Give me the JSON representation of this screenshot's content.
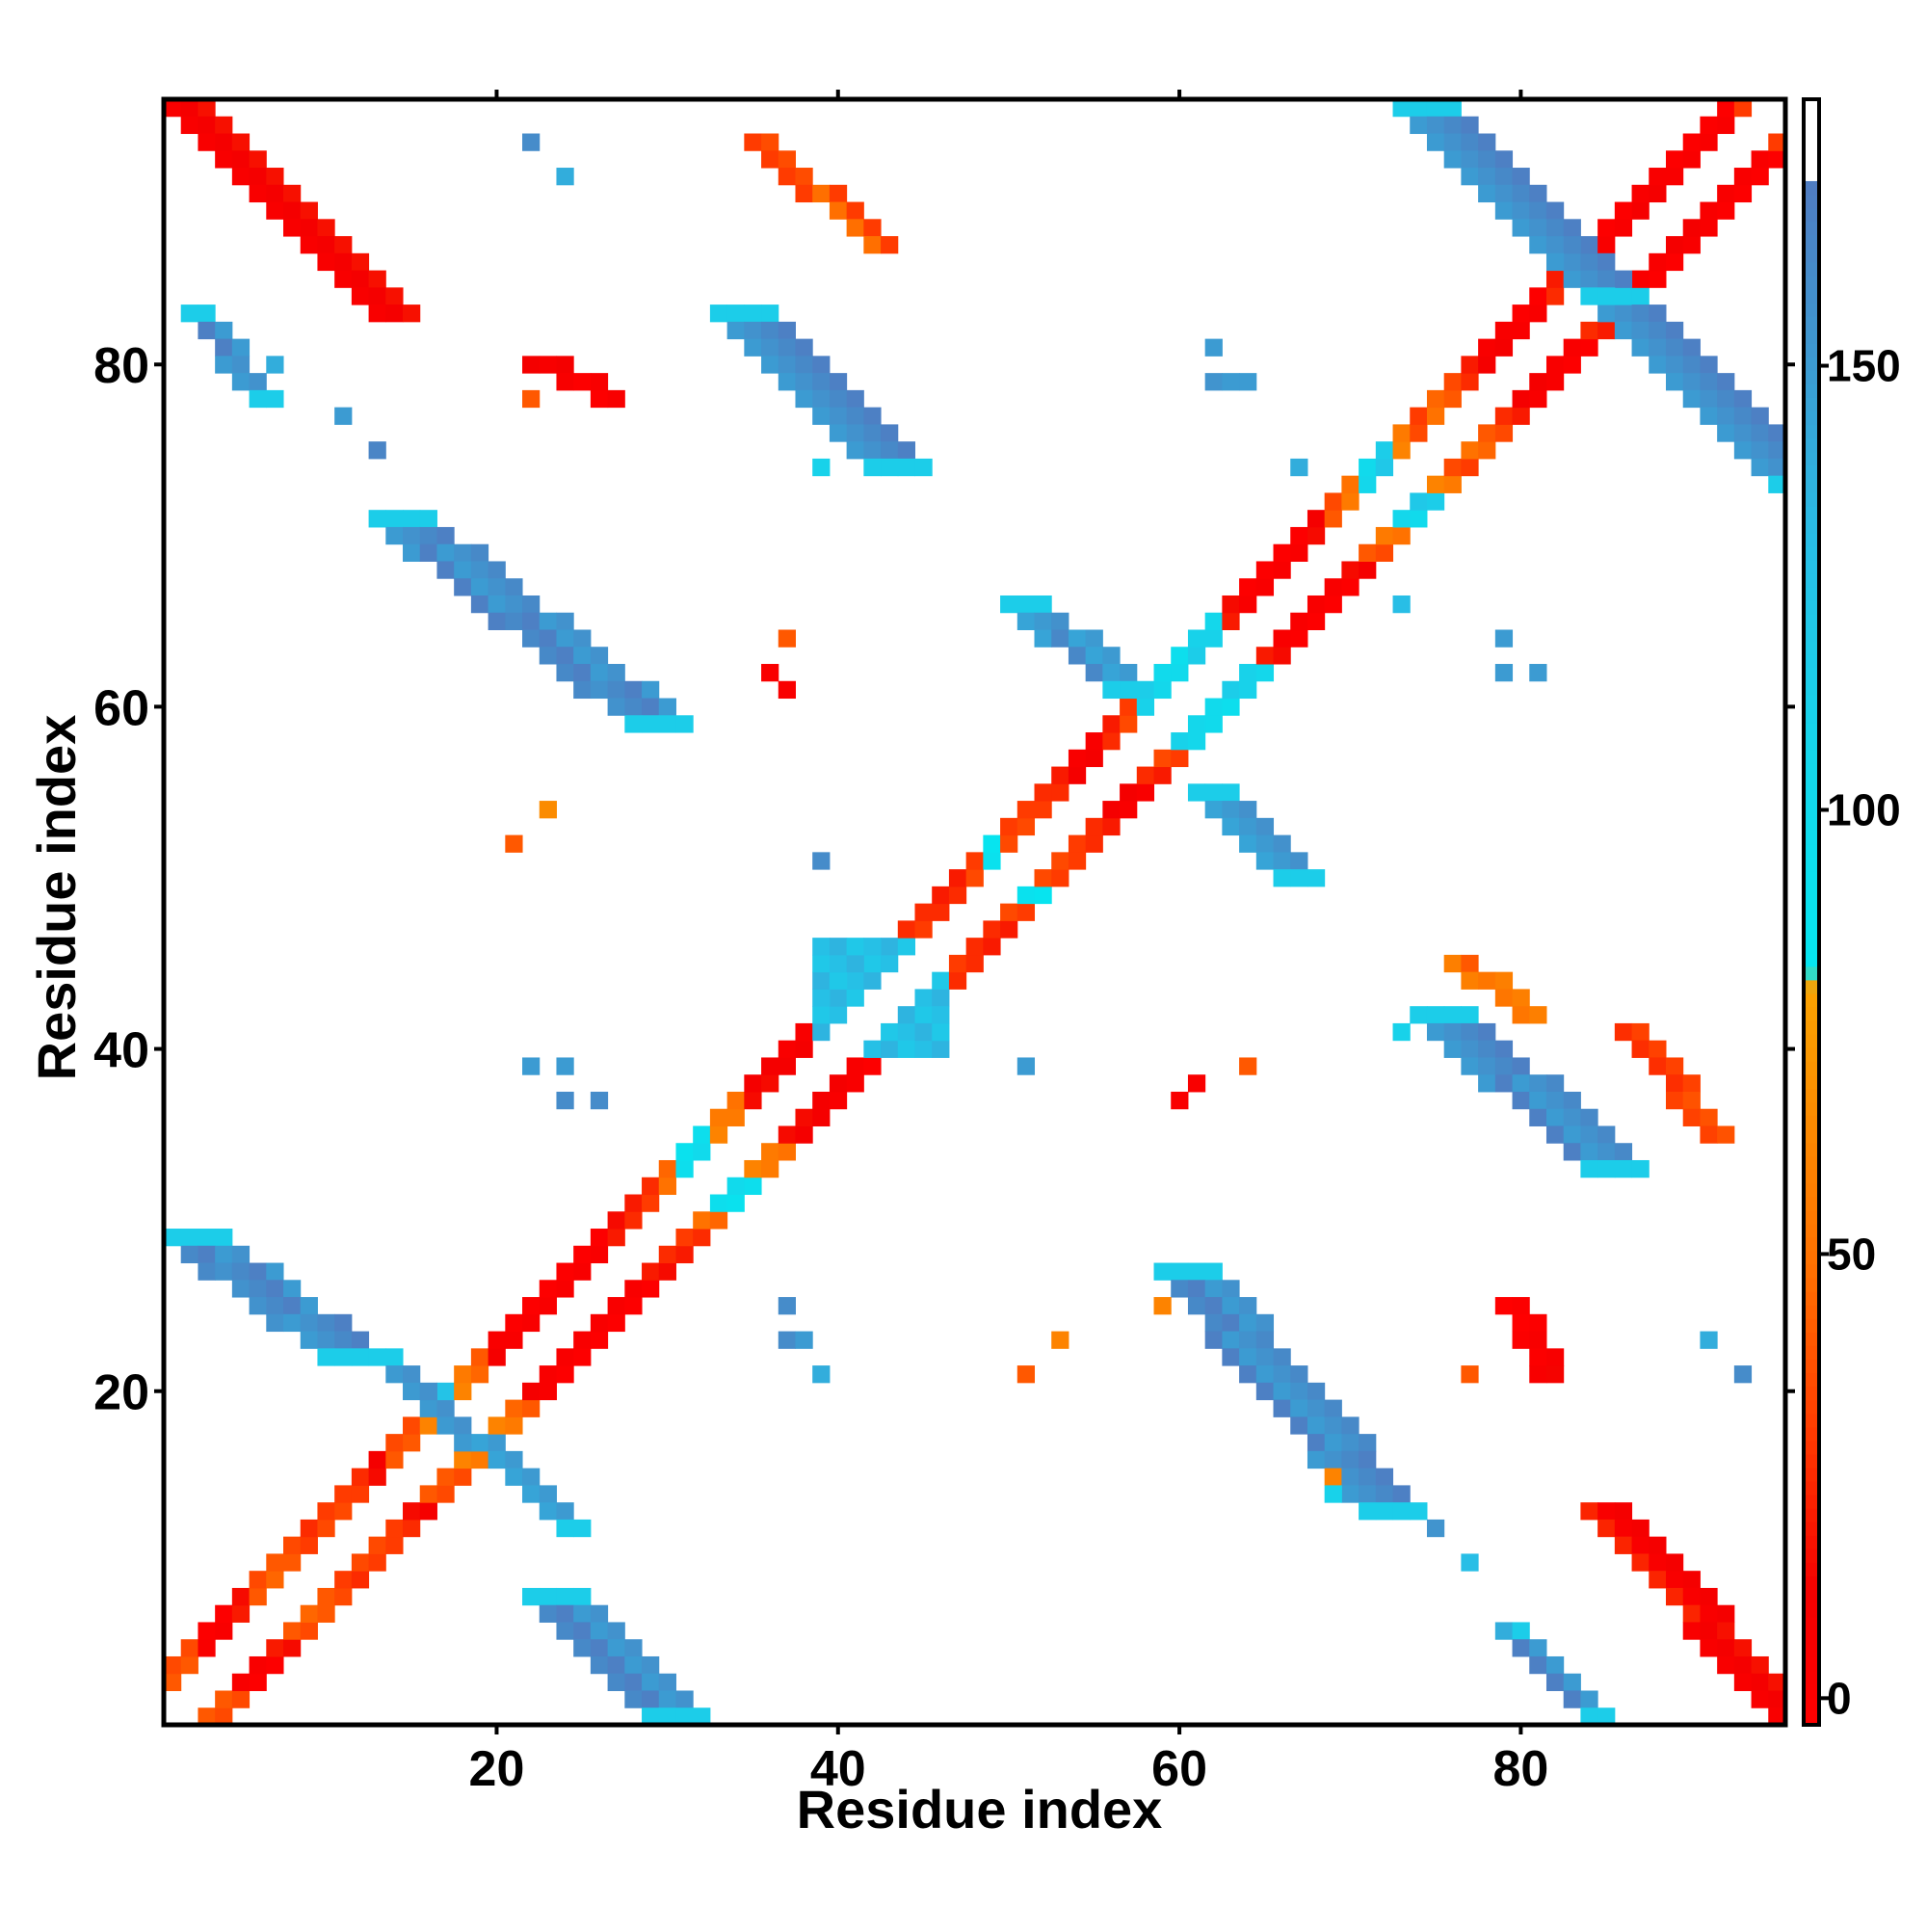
{
  "chart_data": {
    "type": "heatmap",
    "title": "",
    "xlabel": "Residue index",
    "ylabel": "Residue index",
    "xlim": [
      0.5,
      95.5
    ],
    "ylim": [
      0.5,
      95.5
    ],
    "x_ticks": [
      20,
      40,
      60,
      80
    ],
    "y_ticks": [
      20,
      40,
      60,
      80
    ],
    "grid": false,
    "legend": "right",
    "colorbar": {
      "range": [
        -3,
        180
      ],
      "ticks": [
        0,
        50,
        100,
        150
      ],
      "stops": [
        {
          "value": -3,
          "color": "#ff0000"
        },
        {
          "value": 12,
          "color": "#f40000"
        },
        {
          "value": 30,
          "color": "#ff3b00"
        },
        {
          "value": 48,
          "color": "#ff6f00"
        },
        {
          "value": 72,
          "color": "#fa9600"
        },
        {
          "value": 80,
          "color": "#fba200"
        },
        {
          "value": 82,
          "color": "#05e6f0"
        },
        {
          "value": 105,
          "color": "#14d7eb"
        },
        {
          "value": 130,
          "color": "#28bee6"
        },
        {
          "value": 150,
          "color": "#3c9bd2"
        },
        {
          "value": 170,
          "color": "#4f7dc2"
        },
        {
          "value": 180,
          "color": "#ffffff"
        }
      ]
    },
    "diagonal_band": {
      "length": 95,
      "description": "i-i+1, i+2 contacts along diagonal; value per i",
      "values": [
        40,
        40,
        5,
        5,
        20,
        40,
        45,
        40,
        30,
        35,
        35,
        30,
        15,
        40,
        40,
        60,
        130,
        60,
        45,
        10,
        5,
        5,
        5,
        5,
        5,
        5,
        20,
        25,
        30,
        50,
        95,
        100,
        60,
        55,
        15,
        15,
        10,
        10,
        5,
        5,
        35,
        100,
        35,
        30,
        30,
        25,
        25,
        35,
        90,
        35,
        35,
        30,
        25,
        10,
        10,
        25,
        35,
        110,
        105,
        100,
        115,
        110,
        20,
        5,
        5,
        5,
        5,
        15,
        40,
        55,
        105,
        120,
        60,
        35,
        50,
        40,
        25,
        10,
        10,
        5,
        5,
        25,
        35,
        130,
        5,
        5,
        10,
        10,
        5,
        5,
        5,
        5,
        30,
        30,
        30
      ]
    },
    "blocks": [
      {
        "x": [
          1,
          13
        ],
        "y": [
          83,
          95
        ],
        "direction": "anti",
        "value": 15,
        "width": 3
      },
      {
        "x": [
          2,
          6
        ],
        "y": [
          78,
          83
        ],
        "direction": "anti",
        "value": 160,
        "width": 2
      },
      {
        "x": [
          13,
          28
        ],
        "y": [
          59,
          71
        ],
        "direction": "anti",
        "value": 160,
        "width": 4
      },
      {
        "x": [
          33,
          42
        ],
        "y": [
          74,
          83
        ],
        "direction": "anti",
        "value": 160,
        "width": 4
      },
      {
        "x": [
          35,
          42
        ],
        "y": [
          87,
          93
        ],
        "direction": "anti",
        "value": 40,
        "width": 2
      },
      {
        "x": [
          22,
          26
        ],
        "y": [
          78,
          80
        ],
        "direction": "anti",
        "value": 10,
        "width": 2
      },
      {
        "x": [
          73,
          84
        ],
        "y": [
          84,
          95
        ],
        "direction": "anti",
        "value": 160,
        "width": 4
      },
      {
        "x": [
          84,
          95
        ],
        "y": [
          73,
          84
        ],
        "direction": "anti",
        "value": 160,
        "width": 4
      },
      {
        "x": [
          50,
          56
        ],
        "y": [
          61,
          66
        ],
        "direction": "anti",
        "value": 155,
        "width": 3
      },
      {
        "x": [
          61,
          66
        ],
        "y": [
          50,
          55
        ],
        "direction": "anti",
        "value": 155,
        "width": 3
      },
      {
        "x": [
          39,
          46
        ],
        "y": [
          40,
          46
        ],
        "direction": "block",
        "value": 120,
        "width": 2
      },
      {
        "x": [
          1,
          10
        ],
        "y": [
          22,
          29
        ],
        "direction": "anti",
        "value": 160,
        "width": 4
      },
      {
        "x": [
          13,
          24
        ],
        "y": [
          12,
          22
        ],
        "direction": "anti",
        "value": 155,
        "width": 2
      },
      {
        "x": [
          22,
          29
        ],
        "y": [
          1,
          8
        ],
        "direction": "anti",
        "value": 160,
        "width": 4
      },
      {
        "x": [
          59,
          71
        ],
        "y": [
          13,
          27
        ],
        "direction": "anti",
        "value": 160,
        "width": 4
      },
      {
        "x": [
          74,
          84
        ],
        "y": [
          33,
          42
        ],
        "direction": "anti",
        "value": 160,
        "width": 4
      },
      {
        "x": [
          76,
          80
        ],
        "y": [
          42,
          45
        ],
        "direction": "anti",
        "value": 50,
        "width": 2
      },
      {
        "x": [
          86,
          91
        ],
        "y": [
          35,
          41
        ],
        "direction": "anti",
        "value": 30,
        "width": 2
      },
      {
        "x": [
          84,
          95
        ],
        "y": [
          1,
          13
        ],
        "direction": "anti",
        "value": 15,
        "width": 3
      },
      {
        "x": [
          79,
          84
        ],
        "y": [
          1,
          6
        ],
        "direction": "anti",
        "value": 160,
        "width": 2
      },
      {
        "x": [
          79,
          81
        ],
        "y": [
          21,
          25
        ],
        "direction": "anti",
        "value": 5,
        "width": 2
      }
    ],
    "points": [
      {
        "x": 22,
        "y": 93,
        "value": 160
      },
      {
        "x": 24,
        "y": 91,
        "value": 140
      },
      {
        "x": 7,
        "y": 80,
        "value": 140
      },
      {
        "x": 11,
        "y": 77,
        "value": 150
      },
      {
        "x": 13,
        "y": 75,
        "value": 165
      },
      {
        "x": 22,
        "y": 78,
        "value": 40
      },
      {
        "x": 39,
        "y": 74,
        "value": 110
      },
      {
        "x": 37,
        "y": 64,
        "value": 40
      },
      {
        "x": 36,
        "y": 62,
        "value": 5
      },
      {
        "x": 37,
        "y": 61,
        "value": 5
      },
      {
        "x": 62,
        "y": 81,
        "value": 150
      },
      {
        "x": 62,
        "y": 79,
        "value": 155
      },
      {
        "x": 63,
        "y": 79,
        "value": 150
      },
      {
        "x": 64,
        "y": 79,
        "value": 150
      },
      {
        "x": 67,
        "y": 74,
        "value": 140
      },
      {
        "x": 73,
        "y": 66,
        "value": 130
      },
      {
        "x": 79,
        "y": 64,
        "value": 150
      },
      {
        "x": 79,
        "y": 62,
        "value": 150
      },
      {
        "x": 81,
        "y": 62,
        "value": 150
      },
      {
        "x": 39,
        "y": 51,
        "value": 160
      },
      {
        "x": 23,
        "y": 54,
        "value": 65
      },
      {
        "x": 21,
        "y": 52,
        "value": 40
      },
      {
        "x": 22,
        "y": 39,
        "value": 150
      },
      {
        "x": 24,
        "y": 39,
        "value": 150
      },
      {
        "x": 24,
        "y": 37,
        "value": 160
      },
      {
        "x": 26,
        "y": 37,
        "value": 160
      },
      {
        "x": 51,
        "y": 39,
        "value": 150
      },
      {
        "x": 60,
        "y": 37,
        "value": 5
      },
      {
        "x": 61,
        "y": 38,
        "value": 5
      },
      {
        "x": 64,
        "y": 39,
        "value": 40
      },
      {
        "x": 73,
        "y": 41,
        "value": 110
      },
      {
        "x": 37,
        "y": 25,
        "value": 160
      },
      {
        "x": 37,
        "y": 23,
        "value": 160
      },
      {
        "x": 38,
        "y": 23,
        "value": 150
      },
      {
        "x": 39,
        "y": 21,
        "value": 140
      },
      {
        "x": 51,
        "y": 21,
        "value": 40
      },
      {
        "x": 53,
        "y": 23,
        "value": 60
      },
      {
        "x": 59,
        "y": 25,
        "value": 60
      },
      {
        "x": 77,
        "y": 21,
        "value": 40
      },
      {
        "x": 91,
        "y": 23,
        "value": 140
      },
      {
        "x": 93,
        "y": 21,
        "value": 160
      },
      {
        "x": 75,
        "y": 12,
        "value": 155
      },
      {
        "x": 77,
        "y": 10,
        "value": 130
      },
      {
        "x": 79,
        "y": 6,
        "value": 140
      },
      {
        "x": 69,
        "y": 14,
        "value": 110
      },
      {
        "x": 69,
        "y": 15,
        "value": 60
      }
    ]
  }
}
